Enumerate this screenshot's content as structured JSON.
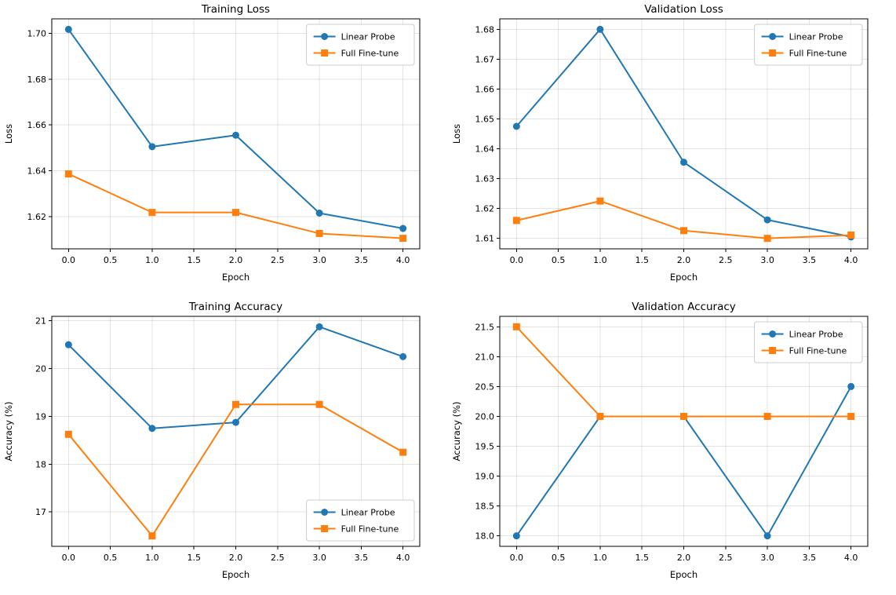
{
  "figure": {
    "background": "#ffffff",
    "series_colors": {
      "linear_probe": "#1f77b4",
      "full_finetune": "#ff7f0e"
    },
    "grid_color": "#b0b0b0",
    "axis_color": "#000000",
    "legend_border_color": "#cccccc"
  },
  "chart_data": [
    {
      "type": "line",
      "title": "Training Loss",
      "xlabel": "Epoch",
      "ylabel": "Loss",
      "x": [
        0,
        1,
        2,
        3,
        4
      ],
      "series": [
        {
          "name": "Linear Probe",
          "color": "#1f77b4",
          "marker": "circle",
          "values": [
            1.7017,
            1.6505,
            1.6555,
            1.6215,
            1.6148
          ]
        },
        {
          "name": "Full Fine-tune",
          "color": "#ff7f0e",
          "marker": "square",
          "values": [
            1.6386,
            1.6218,
            1.6218,
            1.6126,
            1.6105
          ]
        }
      ],
      "xlim": [
        -0.2,
        4.2
      ],
      "ylim": [
        1.6059,
        1.7063
      ],
      "xticks": [
        0.0,
        0.5,
        1.0,
        1.5,
        2.0,
        2.5,
        3.0,
        3.5,
        4.0
      ],
      "yticks": [
        1.62,
        1.64,
        1.66,
        1.68,
        1.7
      ],
      "xtick_decimals": 1,
      "ytick_decimals": 2,
      "grid": true,
      "legend": {
        "position": "upper-right",
        "entries": [
          "Linear Probe",
          "Full Fine-tune"
        ]
      }
    },
    {
      "type": "line",
      "title": "Validation Loss",
      "xlabel": "Epoch",
      "ylabel": "Loss",
      "x": [
        0,
        1,
        2,
        3,
        4
      ],
      "series": [
        {
          "name": "Linear Probe",
          "color": "#1f77b4",
          "marker": "circle",
          "values": [
            1.6475,
            1.68,
            1.6355,
            1.6162,
            1.6105
          ]
        },
        {
          "name": "Full Fine-tune",
          "color": "#ff7f0e",
          "marker": "square",
          "values": [
            1.616,
            1.6225,
            1.6126,
            1.61,
            1.6111
          ]
        }
      ],
      "xlim": [
        -0.2,
        4.2
      ],
      "ylim": [
        1.6065,
        1.6835
      ],
      "xticks": [
        0.0,
        0.5,
        1.0,
        1.5,
        2.0,
        2.5,
        3.0,
        3.5,
        4.0
      ],
      "yticks": [
        1.61,
        1.62,
        1.63,
        1.64,
        1.65,
        1.66,
        1.67,
        1.68
      ],
      "xtick_decimals": 1,
      "ytick_decimals": 2,
      "grid": true,
      "legend": {
        "position": "upper-right",
        "entries": [
          "Linear Probe",
          "Full Fine-tune"
        ]
      }
    },
    {
      "type": "line",
      "title": "Training Accuracy",
      "xlabel": "Epoch",
      "ylabel": "Accuracy (%)",
      "x": [
        0,
        1,
        2,
        3,
        4
      ],
      "series": [
        {
          "name": "Linear Probe",
          "color": "#1f77b4",
          "marker": "circle",
          "values": [
            20.5,
            18.75,
            18.875,
            20.875,
            20.25
          ]
        },
        {
          "name": "Full Fine-tune",
          "color": "#ff7f0e",
          "marker": "square",
          "values": [
            18.625,
            16.5,
            19.25,
            19.25,
            18.25
          ]
        }
      ],
      "xlim": [
        -0.2,
        4.2
      ],
      "ylim": [
        16.281,
        21.094
      ],
      "xticks": [
        0.0,
        0.5,
        1.0,
        1.5,
        2.0,
        2.5,
        3.0,
        3.5,
        4.0
      ],
      "yticks": [
        17,
        18,
        19,
        20,
        21
      ],
      "xtick_decimals": 1,
      "ytick_decimals": 0,
      "grid": true,
      "legend": {
        "position": "lower-right",
        "entries": [
          "Linear Probe",
          "Full Fine-tune"
        ]
      }
    },
    {
      "type": "line",
      "title": "Validation Accuracy",
      "xlabel": "Epoch",
      "ylabel": "Accuracy (%)",
      "x": [
        0,
        1,
        2,
        3,
        4
      ],
      "series": [
        {
          "name": "Linear Probe",
          "color": "#1f77b4",
          "marker": "circle",
          "values": [
            18.0,
            20.0,
            20.0,
            18.0,
            20.5
          ]
        },
        {
          "name": "Full Fine-tune",
          "color": "#ff7f0e",
          "marker": "square",
          "values": [
            21.5,
            20.0,
            20.0,
            20.0,
            20.0
          ]
        }
      ],
      "xlim": [
        -0.2,
        4.2
      ],
      "ylim": [
        17.825,
        21.675
      ],
      "xticks": [
        0.0,
        0.5,
        1.0,
        1.5,
        2.0,
        2.5,
        3.0,
        3.5,
        4.0
      ],
      "yticks": [
        18.0,
        18.5,
        19.0,
        19.5,
        20.0,
        20.5,
        21.0,
        21.5
      ],
      "xtick_decimals": 1,
      "ytick_decimals": 1,
      "grid": true,
      "legend": {
        "position": "upper-right",
        "entries": [
          "Linear Probe",
          "Full Fine-tune"
        ]
      }
    }
  ]
}
